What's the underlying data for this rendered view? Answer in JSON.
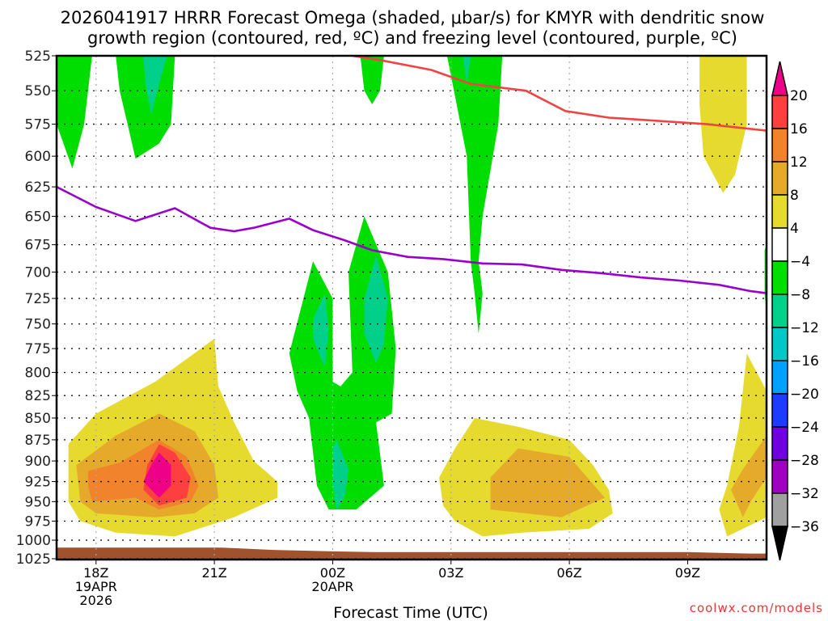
{
  "chart_data": {
    "type": "heatmap",
    "title_lines": [
      "2026041917 HRRR Forecast Omega (shaded, μbar/s) for KMYR with dendritic snow",
      "growth region (contoured, red, ºC) and freezing level (contoured, purple, ºC)"
    ],
    "xlabel": "Forecast Time (UTC)",
    "ylabel": "",
    "credit": "coolwx.com/models",
    "y_axis": {
      "unit": "hPa",
      "scale": "log",
      "inverted": true,
      "ylim": [
        1025,
        525
      ],
      "ticks": [
        525,
        550,
        575,
        600,
        625,
        650,
        675,
        700,
        725,
        750,
        775,
        800,
        825,
        850,
        875,
        900,
        925,
        950,
        975,
        1000,
        1025
      ]
    },
    "x_axis": {
      "unit": "hours since 2026-04-19 00Z",
      "xlim": [
        17.0,
        35.0
      ],
      "ticks": [
        {
          "hour": 18,
          "lines": [
            "18Z",
            "19APR",
            "2026"
          ]
        },
        {
          "hour": 21,
          "lines": [
            "21Z"
          ]
        },
        {
          "hour": 24,
          "lines": [
            "00Z",
            "20APR"
          ]
        },
        {
          "hour": 27,
          "lines": [
            "03Z"
          ]
        },
        {
          "hour": 30,
          "lines": [
            "06Z"
          ]
        },
        {
          "hour": 33,
          "lines": [
            "09Z"
          ]
        }
      ]
    },
    "grid": true,
    "colorbar": {
      "label": "Omega (μbar/s)",
      "ticks": [
        20,
        16,
        12,
        8,
        4,
        -4,
        -8,
        -12,
        -16,
        -20,
        -24,
        -28,
        -32,
        -36
      ],
      "bins": [
        {
          "range": "above 20",
          "color": "#ee0088",
          "extend": true
        },
        {
          "range": "16 to 20",
          "color": "#fd3f3f"
        },
        {
          "range": "12 to 16",
          "color": "#f0832b"
        },
        {
          "range": "8 to 12",
          "color": "#e6aa2a"
        },
        {
          "range": "4 to 8",
          "color": "#e6da2e"
        },
        {
          "range": "-4 to 4",
          "color": "#ffffff"
        },
        {
          "range": "-8 to -4",
          "color": "#00dd00"
        },
        {
          "range": "-12 to -8",
          "color": "#00d08a"
        },
        {
          "range": "-16 to -12",
          "color": "#00c8c8"
        },
        {
          "range": "-20 to -16",
          "color": "#00a0ff"
        },
        {
          "range": "-24 to -20",
          "color": "#1e3cff"
        },
        {
          "range": "-28 to -24",
          "color": "#7000dd"
        },
        {
          "range": "-32 to -28",
          "color": "#a000c0"
        },
        {
          "range": "-36 to -32",
          "color": "#a0a0a0"
        },
        {
          "range": "below -36",
          "color": "#000000",
          "extend": true
        }
      ]
    },
    "shaded_regions": [
      {
        "name": "upward-motion-1800",
        "level": "-8 to -4",
        "points": [
          [
            17.0,
            525
          ],
          [
            17.9,
            525
          ],
          [
            17.7,
            575
          ],
          [
            17.4,
            610
          ],
          [
            17.0,
            575
          ]
        ]
      },
      {
        "name": "upward-motion-2000",
        "level": "-8 to -4",
        "points": [
          [
            18.5,
            525
          ],
          [
            20.0,
            525
          ],
          [
            19.9,
            575
          ],
          [
            19.6,
            590
          ],
          [
            19.0,
            602
          ],
          [
            18.8,
            575
          ],
          [
            18.6,
            550
          ]
        ]
      },
      {
        "name": "upward-motion-2000-core",
        "level": "-12 to -8",
        "points": [
          [
            19.2,
            525
          ],
          [
            19.8,
            525
          ],
          [
            19.6,
            545
          ],
          [
            19.4,
            568
          ],
          [
            19.25,
            545
          ]
        ]
      },
      {
        "name": "upward-motion-2330",
        "level": "-8 to -4",
        "points": [
          [
            22.9,
            780
          ],
          [
            23.5,
            690
          ],
          [
            24.0,
            725
          ],
          [
            24.0,
            810
          ],
          [
            24.2,
            815
          ],
          [
            24.5,
            800
          ],
          [
            24.4,
            700
          ],
          [
            24.8,
            650
          ],
          [
            25.4,
            700
          ],
          [
            25.6,
            775
          ],
          [
            25.5,
            845
          ],
          [
            25.1,
            855
          ],
          [
            25.3,
            930
          ],
          [
            24.6,
            960
          ],
          [
            23.9,
            960
          ],
          [
            23.6,
            930
          ],
          [
            23.4,
            850
          ],
          [
            23.1,
            820
          ]
        ]
      },
      {
        "name": "upward-motion-2330-core-a",
        "level": "-12 to -8",
        "points": [
          [
            23.5,
            745
          ],
          [
            23.8,
            720
          ],
          [
            23.9,
            755
          ],
          [
            23.8,
            795
          ],
          [
            23.5,
            765
          ]
        ]
      },
      {
        "name": "upward-motion-0100-core",
        "level": "-12 to -8",
        "points": [
          [
            24.8,
            725
          ],
          [
            25.1,
            685
          ],
          [
            25.4,
            725
          ],
          [
            25.3,
            770
          ],
          [
            25.1,
            790
          ],
          [
            24.8,
            760
          ]
        ]
      },
      {
        "name": "upward-motion-0000-core",
        "level": "-12 to -8",
        "points": [
          [
            24.0,
            885
          ],
          [
            24.1,
            875
          ],
          [
            24.4,
            910
          ],
          [
            24.3,
            945
          ],
          [
            24.1,
            960
          ],
          [
            24.0,
            930
          ]
        ]
      },
      {
        "name": "upward-motion-0100-top",
        "level": "-8 to -4",
        "points": [
          [
            24.7,
            525
          ],
          [
            25.3,
            525
          ],
          [
            25.2,
            550
          ],
          [
            25.0,
            560
          ],
          [
            24.8,
            550
          ]
        ]
      },
      {
        "name": "upward-motion-0400",
        "level": "-8 to -4",
        "points": [
          [
            26.9,
            525
          ],
          [
            28.3,
            525
          ],
          [
            28.2,
            575
          ],
          [
            27.8,
            650
          ],
          [
            27.7,
            690
          ],
          [
            27.8,
            720
          ],
          [
            27.7,
            760
          ],
          [
            27.6,
            720
          ],
          [
            27.5,
            690
          ],
          [
            27.4,
            600
          ]
        ]
      },
      {
        "name": "upward-motion-0400-core",
        "level": "-12 to -8",
        "points": [
          [
            27.3,
            525
          ],
          [
            27.5,
            525
          ],
          [
            27.4,
            545
          ]
        ]
      },
      {
        "name": "upward-motion-right-edge",
        "level": "-8 to -4",
        "points": [
          [
            34.95,
            680
          ],
          [
            35.0,
            675
          ],
          [
            35.0,
            740
          ],
          [
            34.95,
            720
          ]
        ]
      },
      {
        "name": "sinking-1900",
        "level": "4 to 8",
        "points": [
          [
            17.3,
            880
          ],
          [
            18.0,
            845
          ],
          [
            19.5,
            810
          ],
          [
            21.0,
            765
          ],
          [
            21.1,
            815
          ],
          [
            21.5,
            855
          ],
          [
            22.0,
            900
          ],
          [
            22.6,
            925
          ],
          [
            22.6,
            945
          ],
          [
            21.5,
            970
          ],
          [
            20.0,
            995
          ],
          [
            18.5,
            990
          ],
          [
            17.6,
            975
          ],
          [
            17.3,
            950
          ]
        ]
      },
      {
        "name": "sinking-1900-8",
        "level": "8 to 12",
        "points": [
          [
            17.5,
            905
          ],
          [
            18.5,
            870
          ],
          [
            19.6,
            845
          ],
          [
            20.5,
            865
          ],
          [
            21.0,
            905
          ],
          [
            21.1,
            945
          ],
          [
            20.5,
            965
          ],
          [
            19.5,
            970
          ],
          [
            18.0,
            965
          ],
          [
            17.6,
            950
          ]
        ]
      },
      {
        "name": "sinking-1900-12",
        "level": "12 to 16",
        "points": [
          [
            17.8,
            912
          ],
          [
            18.6,
            902
          ],
          [
            19.6,
            875
          ],
          [
            20.3,
            895
          ],
          [
            20.6,
            930
          ],
          [
            20.4,
            950
          ],
          [
            19.6,
            960
          ],
          [
            19.0,
            945
          ],
          [
            17.9,
            950
          ],
          [
            17.8,
            930
          ]
        ]
      },
      {
        "name": "sinking-2000-16",
        "level": "16 to 20",
        "points": [
          [
            19.6,
            880
          ],
          [
            20.0,
            890
          ],
          [
            20.4,
            920
          ],
          [
            20.3,
            945
          ],
          [
            19.6,
            955
          ],
          [
            19.2,
            935
          ],
          [
            19.3,
            905
          ]
        ]
      },
      {
        "name": "sinking-2000-20",
        "level": "above 20",
        "points": [
          [
            19.6,
            890
          ],
          [
            19.9,
            905
          ],
          [
            19.9,
            930
          ],
          [
            19.6,
            945
          ],
          [
            19.2,
            925
          ],
          [
            19.4,
            905
          ]
        ]
      },
      {
        "name": "sinking-0500",
        "level": "4 to 8",
        "points": [
          [
            26.7,
            920
          ],
          [
            27.1,
            885
          ],
          [
            27.6,
            850
          ],
          [
            28.7,
            860
          ],
          [
            30.0,
            875
          ],
          [
            30.6,
            905
          ],
          [
            31.0,
            935
          ],
          [
            31.1,
            965
          ],
          [
            30.5,
            985
          ],
          [
            28.8,
            990
          ],
          [
            27.8,
            995
          ],
          [
            27.1,
            975
          ],
          [
            26.8,
            955
          ]
        ]
      },
      {
        "name": "sinking-0500-8",
        "level": "8 to 12",
        "points": [
          [
            28.0,
            920
          ],
          [
            28.7,
            885
          ],
          [
            30.0,
            895
          ],
          [
            30.9,
            945
          ],
          [
            29.8,
            970
          ],
          [
            28.9,
            965
          ],
          [
            28.0,
            960
          ]
        ]
      },
      {
        "name": "sinking-0930",
        "level": "4 to 8",
        "points": [
          [
            33.3,
            525
          ],
          [
            34.5,
            525
          ],
          [
            34.5,
            575
          ],
          [
            34.2,
            615
          ],
          [
            33.9,
            630
          ],
          [
            33.4,
            600
          ],
          [
            33.3,
            560
          ]
        ]
      },
      {
        "name": "sinking-1030",
        "level": "4 to 8",
        "points": [
          [
            34.0,
            930
          ],
          [
            34.3,
            860
          ],
          [
            34.5,
            780
          ],
          [
            35.0,
            820
          ],
          [
            35.0,
            970
          ],
          [
            34.6,
            980
          ],
          [
            34.0,
            995
          ],
          [
            33.8,
            960
          ]
        ]
      },
      {
        "name": "sinking-1030-8",
        "level": "8 to 12",
        "points": [
          [
            34.1,
            935
          ],
          [
            34.4,
            910
          ],
          [
            35.0,
            870
          ],
          [
            35.0,
            920
          ],
          [
            34.6,
            950
          ],
          [
            34.4,
            970
          ]
        ]
      }
    ],
    "series": [
      {
        "name": "dendritic snow growth region",
        "color": "#ee4444",
        "x": [
          24.5,
          25.2,
          26.5,
          27.5,
          28.9,
          29.9,
          31.0,
          32.0,
          33.5,
          35.0
        ],
        "y": [
          525,
          528,
          535,
          545,
          550,
          565,
          570,
          572,
          575,
          580
        ]
      },
      {
        "name": "freezing level",
        "color": "#9900cc",
        "x": [
          17.0,
          18.0,
          19.0,
          20.0,
          20.9,
          21.5,
          22.0,
          22.9,
          23.5,
          24.3,
          25.0,
          25.9,
          26.8,
          27.8,
          28.8,
          29.8,
          30.8,
          31.8,
          32.8,
          33.8,
          34.6,
          35.0
        ],
        "y": [
          625,
          642,
          654,
          643,
          660,
          663,
          660,
          652,
          662,
          671,
          680,
          686,
          688,
          692,
          693,
          698,
          701,
          705,
          708,
          712,
          718,
          720
        ]
      }
    ],
    "terrain": {
      "color": "#a0522d",
      "x": [
        17.0,
        21.2,
        22.5,
        24.0,
        25.0,
        28.0,
        30.0,
        33.0,
        34.6,
        35.0
      ],
      "top_hPa": [
        1010,
        1010,
        1013,
        1015,
        1016,
        1016,
        1016,
        1016,
        1018,
        1018
      ]
    }
  }
}
